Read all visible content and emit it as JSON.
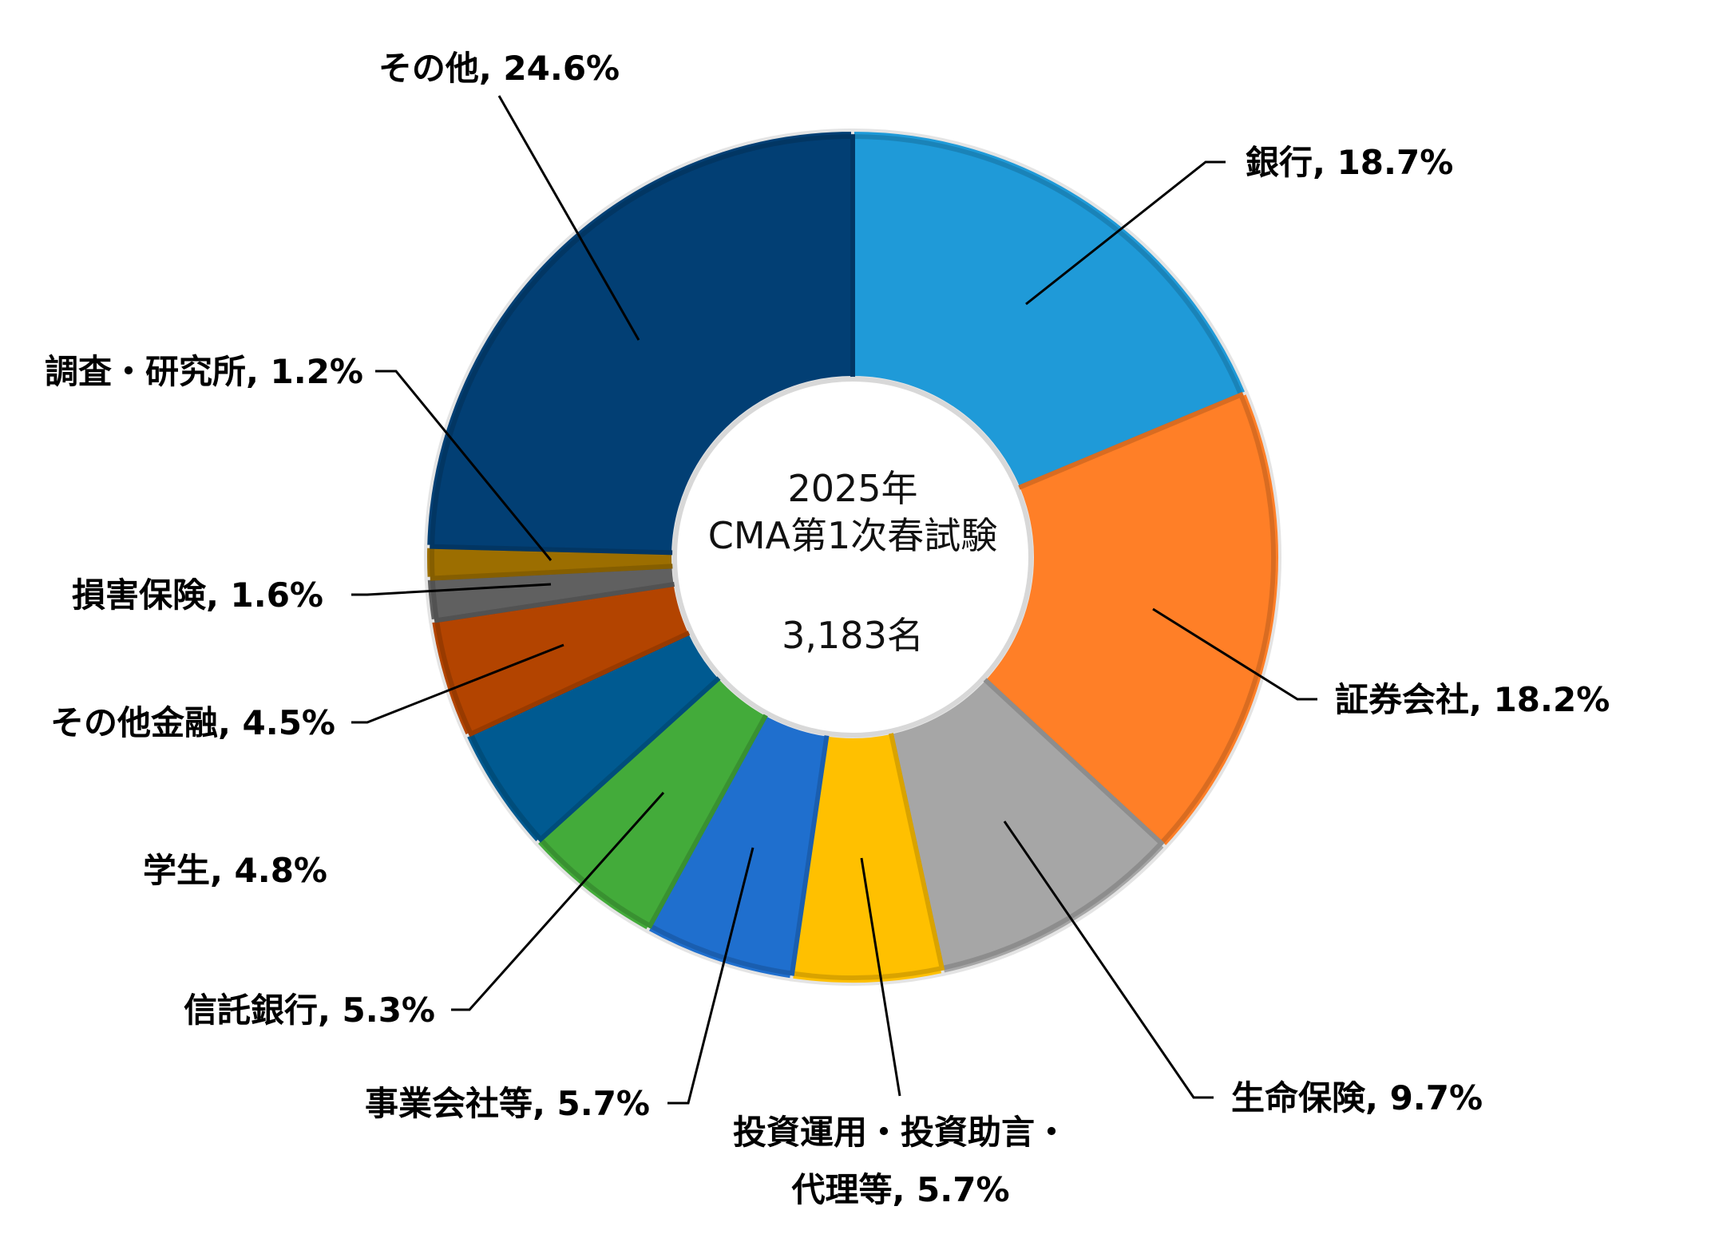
{
  "chart_data": {
    "type": "pie",
    "variant": "donut",
    "title": "",
    "center_text": {
      "line1": "2025年",
      "line2": "CMA第1次春試験",
      "total": "3,183名"
    },
    "slices": [
      {
        "category": "銀行",
        "value": 18.7,
        "label": "銀行, 18.7%",
        "color": "#1f9ad8"
      },
      {
        "category": "証券会社",
        "value": 18.2,
        "label": "証券会社, 18.2%",
        "color": "#ff7f27"
      },
      {
        "category": "生命保険",
        "value": 9.7,
        "label": "生命保険, 9.7%",
        "color": "#a6a6a6"
      },
      {
        "category": "投資運用・投資助言・代理等",
        "value": 5.7,
        "label_lines": [
          "投資運用・投資助言・",
          "代理等, 5.7%"
        ],
        "color": "#ffc000"
      },
      {
        "category": "事業会社等",
        "value": 5.7,
        "label": "事業会社等, 5.7%",
        "color": "#1f6fce"
      },
      {
        "category": "信託銀行",
        "value": 5.3,
        "label": "信託銀行, 5.3%",
        "color": "#43ab3a"
      },
      {
        "category": "学生",
        "value": 4.8,
        "label": "学生, 4.8%",
        "color": "#005a91"
      },
      {
        "category": "その他金融",
        "value": 4.5,
        "label": "その他金融, 4.5%",
        "color": "#b34400"
      },
      {
        "category": "損害保険",
        "value": 1.6,
        "label": "損害保険, 1.6%",
        "color": "#606060"
      },
      {
        "category": "調査・研究所",
        "value": 1.2,
        "label": "調査・研究所, 1.2%",
        "color": "#9c6e00"
      },
      {
        "category": "その他",
        "value": 24.6,
        "label": "その他, 24.6%",
        "color": "#023f74"
      }
    ]
  }
}
